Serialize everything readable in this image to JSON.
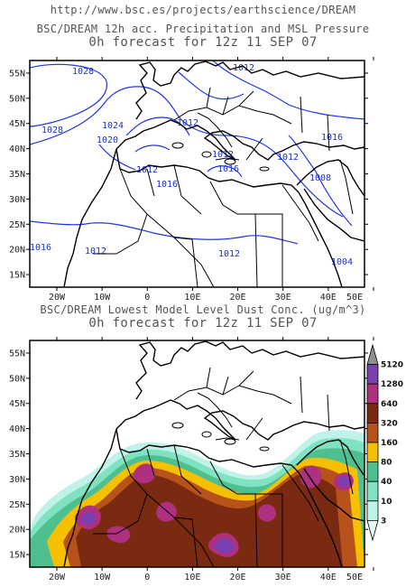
{
  "header": {
    "url": "http://www.bsc.es/projects/earthscience/DREAM"
  },
  "panel_top": {
    "title": "BSC/DREAM 12h acc. Precipitation and MSL Pressure",
    "subtitle": "0h forecast for 12z 11 SEP 07",
    "isobar_labels": [
      "1028",
      "1024",
      "1028",
      "1020",
      "1012",
      "1012",
      "1012",
      "1012",
      "1016",
      "1016",
      "1016",
      "1012",
      "1008",
      "1016",
      "1012",
      "1012",
      "1004"
    ]
  },
  "panel_bottom": {
    "title": "BSC/DREAM Lowest Model Level Dust Conc. (ug/m^3)",
    "subtitle": "0h forecast for 12z 11 SEP 07"
  },
  "axes": {
    "lat_labels": [
      "55N",
      "50N",
      "45N",
      "40N",
      "35N",
      "30N",
      "25N",
      "20N",
      "15N"
    ],
    "lon_labels": [
      "20W",
      "10W",
      "0",
      "10E",
      "20E",
      "30E",
      "40E",
      "50E"
    ]
  },
  "colorbar": {
    "labels": [
      "5120",
      "1280",
      "640",
      "320",
      "160",
      "80",
      "40",
      "10",
      "3"
    ],
    "colors": [
      "#8f8f8f",
      "#7a3fb0",
      "#b03080",
      "#7a2a10",
      "#b8521b",
      "#f5c000",
      "#4fbf90",
      "#7fe3c2",
      "#bff2e8",
      "#e6fbf7"
    ]
  }
}
